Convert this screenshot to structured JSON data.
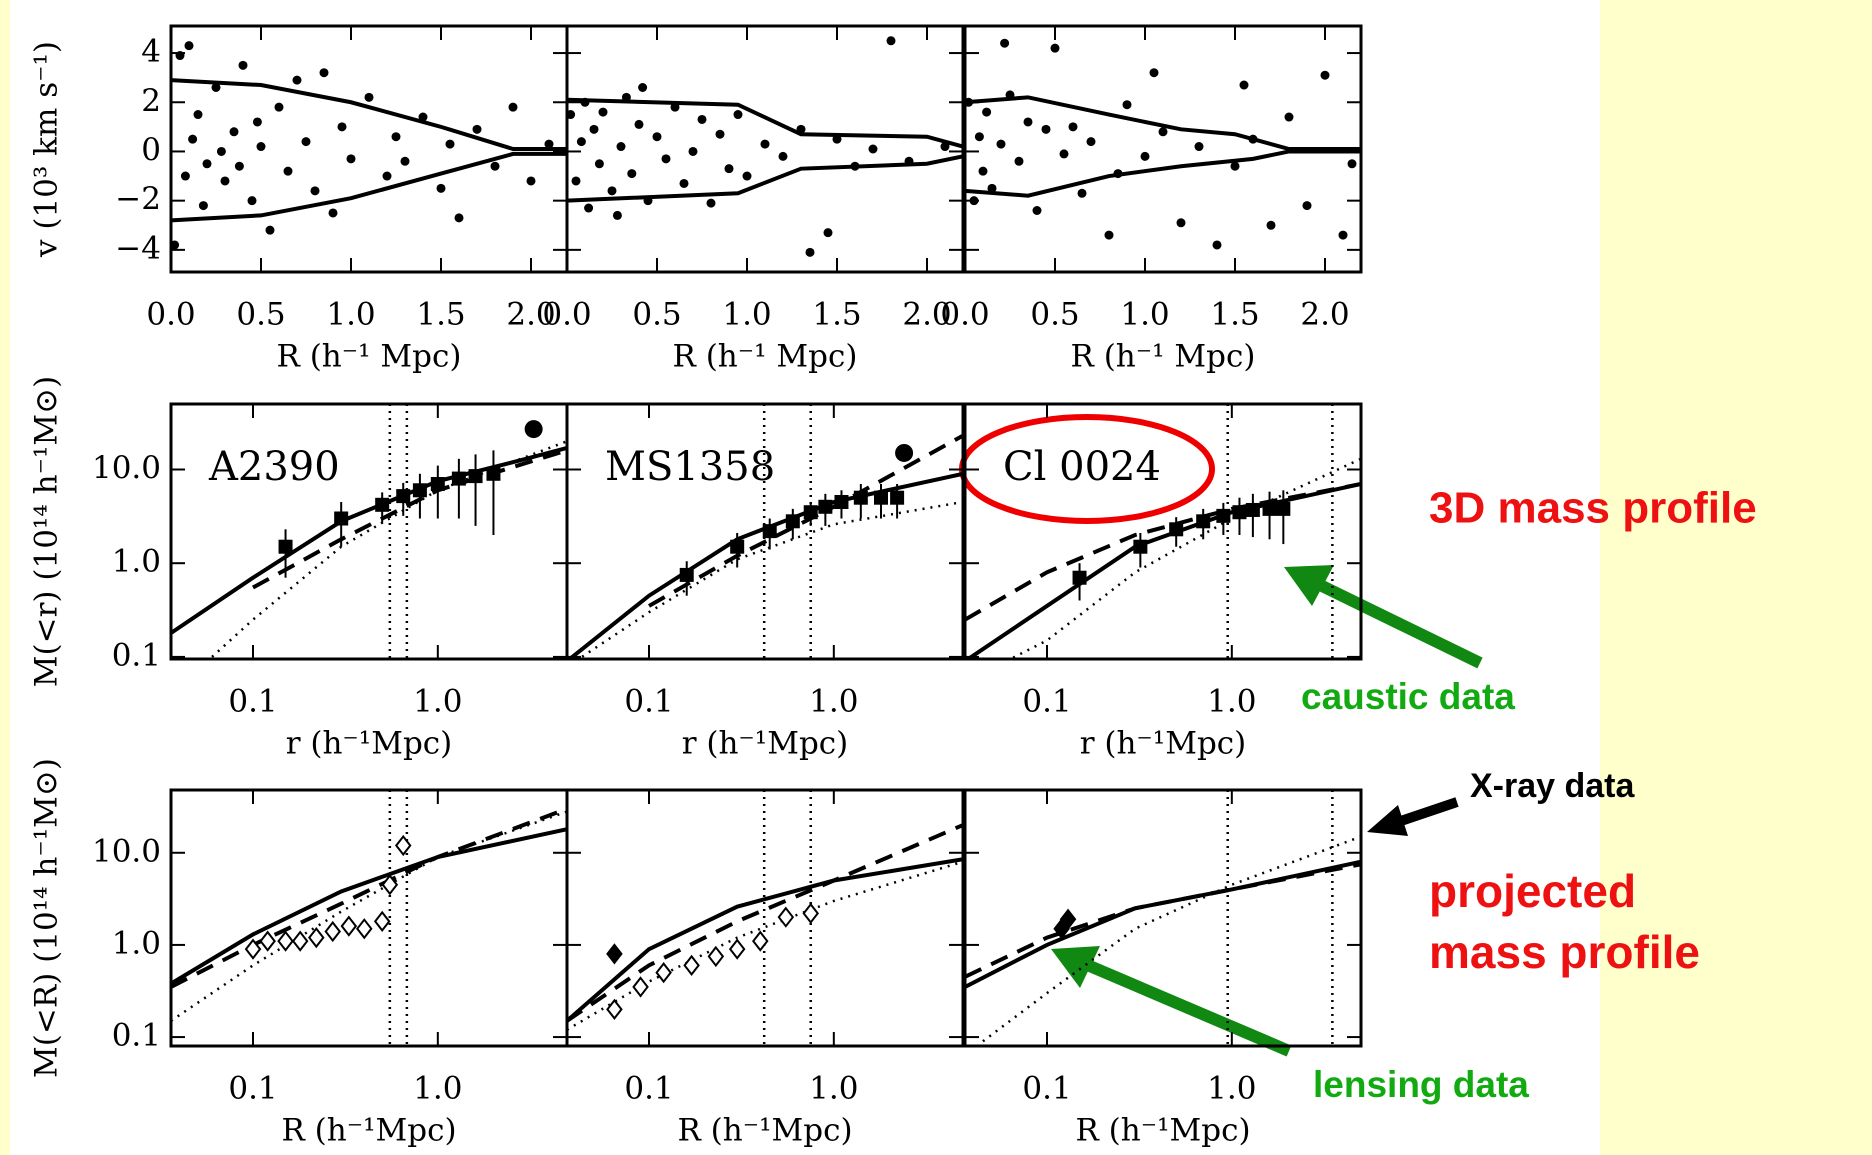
{
  "chart_data": [
    {
      "type": "scatter",
      "xlim": [
        0,
        2.2
      ],
      "xticks": [
        {
          "value": 0,
          "label": "0.0"
        },
        0.5,
        {
          "value": 1,
          "label": "1.0"
        },
        1.5,
        {
          "value": 2,
          "label": "2.0"
        }
      ],
      "ylim": [
        -4.9,
        5.1
      ],
      "yticks": [
        4,
        2,
        0,
        {
          "value": -2,
          "label": "−2"
        },
        {
          "value": -4,
          "label": "−4"
        }
      ],
      "x_label": "R (h⁻¹ Mpc)",
      "y_label": "v (10³ km s⁻¹)",
      "x": [
        0.05,
        0.1,
        0.15,
        0.2,
        0.25,
        0.3,
        0.35,
        0.4,
        0.45,
        0.5,
        0.55,
        0.6,
        0.65,
        0.7,
        0.75,
        0.8,
        0.85,
        0.9,
        0.95,
        1.0,
        1.1,
        1.2,
        1.25,
        1.3,
        1.4,
        1.5,
        1.55,
        1.6,
        1.7,
        1.8,
        1.9,
        2.0,
        2.1,
        0.02,
        0.08,
        0.12,
        0.18,
        0.28,
        0.38,
        0.48
      ],
      "values": [
        3.9,
        4.3,
        1.5,
        -0.5,
        2.6,
        -1.2,
        0.8,
        3.5,
        -2.0,
        0.2,
        -3.2,
        1.8,
        -0.8,
        2.9,
        0.4,
        -1.6,
        3.2,
        -2.5,
        1.0,
        -0.3,
        2.2,
        -1.0,
        0.6,
        -0.4,
        1.4,
        -1.5,
        0.3,
        -2.7,
        0.9,
        -0.6,
        1.8,
        -1.2,
        0.3,
        -3.8,
        -1.0,
        0.5,
        -2.2,
        0.0,
        -0.6,
        1.2
      ],
      "curves": [
        {
          "style": "solid",
          "x": [
            0,
            0.5,
            1,
            1.5,
            1.9,
            2.2
          ],
          "values": [
            2.9,
            2.7,
            2.0,
            1.0,
            0.1,
            0.1
          ]
        },
        {
          "style": "solid",
          "x": [
            0,
            0.5,
            1,
            1.5,
            1.9,
            2.2
          ],
          "values": [
            -2.8,
            -2.6,
            -1.9,
            -0.9,
            -0.1,
            -0.1
          ]
        }
      ]
    },
    {
      "type": "scatter",
      "xlim": [
        0,
        2.2
      ],
      "xticks": [
        {
          "value": 0,
          "label": "0.0"
        },
        0.5,
        {
          "value": 1,
          "label": "1.0"
        },
        1.5,
        {
          "value": 2,
          "label": "2.0"
        }
      ],
      "ylim": [
        -4.9,
        5.1
      ],
      "yticks": [
        4,
        2,
        0,
        -2,
        -4
      ],
      "ytick_labels": false,
      "x_label": "R (h⁻¹ Mpc)",
      "x": [
        0.02,
        0.05,
        0.08,
        0.1,
        0.12,
        0.15,
        0.18,
        0.2,
        0.25,
        0.3,
        0.33,
        0.36,
        0.4,
        0.45,
        0.5,
        0.55,
        0.6,
        0.65,
        0.7,
        0.75,
        0.8,
        0.85,
        0.9,
        0.95,
        1.0,
        1.1,
        1.2,
        1.3,
        1.35,
        1.45,
        1.5,
        1.6,
        1.7,
        1.8,
        1.9,
        2.1,
        0.28,
        0.42
      ],
      "values": [
        1.5,
        -1.2,
        0.4,
        2.0,
        -2.3,
        0.9,
        -0.5,
        1.6,
        -1.6,
        0.2,
        2.2,
        -0.9,
        1.1,
        -2.0,
        0.6,
        -0.3,
        1.8,
        -1.3,
        0.0,
        1.3,
        -2.1,
        0.7,
        -0.7,
        1.5,
        -1.0,
        0.3,
        -0.2,
        0.9,
        -4.1,
        -3.3,
        0.5,
        -0.6,
        0.1,
        4.5,
        -0.4,
        0.2,
        -2.6,
        2.6
      ],
      "curves": [
        {
          "style": "solid",
          "x": [
            0,
            0.95,
            1.3,
            2.0,
            2.2
          ],
          "values": [
            2.1,
            1.9,
            0.7,
            0.6,
            0.2
          ]
        },
        {
          "style": "solid",
          "x": [
            0,
            0.95,
            1.3,
            2.0,
            2.2
          ],
          "values": [
            -2.0,
            -1.7,
            -0.7,
            -0.5,
            -0.2
          ]
        }
      ]
    },
    {
      "type": "scatter",
      "xlim": [
        0,
        2.2
      ],
      "xticks": [
        {
          "value": 0,
          "label": "0.0"
        },
        0.5,
        {
          "value": 1,
          "label": "1.0"
        },
        1.5,
        {
          "value": 2,
          "label": "2.0"
        }
      ],
      "ylim": [
        -4.9,
        5.1
      ],
      "yticks": [
        4,
        2,
        0,
        -2,
        -4
      ],
      "ytick_labels": false,
      "x_label": "R (h⁻¹ Mpc)",
      "x": [
        0.02,
        0.05,
        0.08,
        0.1,
        0.12,
        0.15,
        0.2,
        0.25,
        0.3,
        0.35,
        0.4,
        0.45,
        0.5,
        0.55,
        0.6,
        0.65,
        0.7,
        0.8,
        0.85,
        0.9,
        1.0,
        1.05,
        1.1,
        1.2,
        1.3,
        1.4,
        1.5,
        1.55,
        1.6,
        1.7,
        1.8,
        1.9,
        2.0,
        2.1,
        2.15,
        0.22
      ],
      "values": [
        2.0,
        -2.0,
        0.6,
        -0.8,
        1.6,
        -1.5,
        0.3,
        2.3,
        -0.4,
        1.2,
        -2.4,
        0.9,
        4.2,
        -0.1,
        1.0,
        -1.7,
        0.4,
        -3.4,
        -0.9,
        1.9,
        -0.2,
        3.2,
        0.8,
        -2.9,
        0.2,
        -3.8,
        -0.6,
        2.7,
        0.5,
        -3.0,
        1.4,
        -2.2,
        3.1,
        -3.4,
        -0.5,
        4.4
      ],
      "curves": [
        {
          "style": "solid",
          "x": [
            0,
            0.35,
            0.8,
            1.2,
            1.5,
            1.8,
            2.2
          ],
          "values": [
            2.0,
            2.2,
            1.5,
            0.9,
            0.7,
            0.1,
            0.1
          ]
        },
        {
          "style": "solid",
          "x": [
            0,
            0.35,
            0.8,
            1.2,
            1.6,
            1.8,
            2.2
          ],
          "values": [
            -1.6,
            -1.8,
            -1.0,
            -0.6,
            -0.3,
            0.0,
            0.0
          ]
        }
      ]
    },
    {
      "type": "line",
      "log_x": true,
      "log_y": true,
      "label": "A2390",
      "xlim": [
        0.036,
        5
      ],
      "xticks": [
        0.1,
        {
          "value": 1,
          "label": "1.0"
        }
      ],
      "ylim": [
        0.095,
        50
      ],
      "yticks": [
        {
          "value": 10,
          "label": "10.0"
        },
        {
          "value": 1,
          "label": "1.0"
        },
        0.1
      ],
      "x_label": "r (h⁻¹Mpc)",
      "y_label": "M(<r) (10¹⁴ h⁻¹M⊙)",
      "vlines": [
        0.55,
        0.68
      ],
      "curves": [
        {
          "style": "solid",
          "x": [
            0.036,
            0.1,
            0.3,
            1,
            3,
            5
          ],
          "values": [
            0.18,
            0.7,
            2.8,
            7.5,
            13,
            17
          ]
        },
        {
          "style": "dashed",
          "x": [
            0.1,
            0.3,
            1,
            5
          ],
          "values": [
            0.55,
            1.8,
            6,
            16
          ]
        },
        {
          "style": "dotted",
          "x": [
            0.06,
            0.1,
            0.3,
            1,
            5
          ],
          "values": [
            0.1,
            0.25,
            1.5,
            6,
            20
          ]
        }
      ],
      "points": [
        {
          "marker": "square",
          "x": [
            0.15,
            0.3,
            0.5,
            0.65,
            0.8,
            1.0,
            1.3,
            1.6,
            2.0
          ],
          "values": [
            1.5,
            3,
            4.2,
            5.2,
            6,
            7,
            8,
            8.5,
            9
          ],
          "errors": [
            0.8,
            1.5,
            1.5,
            2,
            3,
            4,
            5,
            6,
            7
          ]
        },
        {
          "marker": "circle",
          "x": [
            3.3
          ],
          "values": [
            27
          ]
        }
      ]
    },
    {
      "type": "line",
      "log_x": true,
      "log_y": true,
      "label": "MS1358",
      "xlim": [
        0.036,
        5
      ],
      "xticks": [
        0.1,
        {
          "value": 1,
          "label": "1.0"
        }
      ],
      "ylim": [
        0.095,
        50
      ],
      "yticks": [
        10,
        1,
        0.1
      ],
      "ytick_labels": false,
      "x_label": "r (h⁻¹Mpc)",
      "vlines": [
        0.42,
        0.75
      ],
      "curves": [
        {
          "style": "solid",
          "x": [
            0.036,
            0.1,
            0.3,
            1,
            5
          ],
          "values": [
            0.09,
            0.45,
            1.8,
            4.5,
            9
          ]
        },
        {
          "style": "dashed",
          "x": [
            0.1,
            0.3,
            1,
            5
          ],
          "values": [
            0.35,
            1.2,
            4,
            23
          ]
        },
        {
          "style": "dotted",
          "x": [
            0.04,
            0.1,
            0.3,
            1,
            5
          ],
          "values": [
            0.09,
            0.3,
            1.1,
            2.6,
            4.5
          ]
        }
      ],
      "points": [
        {
          "marker": "square",
          "x": [
            0.16,
            0.3,
            0.45,
            0.6,
            0.75,
            0.9,
            1.1,
            1.4,
            1.8,
            2.2
          ],
          "values": [
            0.75,
            1.5,
            2.2,
            2.8,
            3.5,
            4,
            4.5,
            5,
            5,
            5
          ],
          "errors": [
            0.3,
            0.6,
            0.8,
            1,
            1,
            1.5,
            1.5,
            2,
            2,
            2
          ]
        },
        {
          "marker": "circle",
          "x": [
            2.4
          ],
          "values": [
            15
          ]
        }
      ]
    },
    {
      "type": "line",
      "log_x": true,
      "log_y": true,
      "label": "Cl 0024",
      "xlim": [
        0.036,
        5
      ],
      "xticks": [
        0.1,
        {
          "value": 1,
          "label": "1.0"
        }
      ],
      "ylim": [
        0.095,
        50
      ],
      "yticks": [
        10,
        1,
        0.1
      ],
      "ytick_labels": false,
      "x_label": "r (h⁻¹Mpc)",
      "vlines": [
        0.95,
        3.5
      ],
      "curves": [
        {
          "style": "solid",
          "x": [
            0.036,
            0.1,
            0.3,
            1,
            5
          ],
          "values": [
            0.09,
            0.35,
            1.5,
            3.5,
            7
          ]
        },
        {
          "style": "dashed",
          "x": [
            0.036,
            0.1,
            0.3,
            1,
            5
          ],
          "values": [
            0.25,
            0.8,
            2,
            3.8,
            7
          ]
        },
        {
          "style": "dotted",
          "x": [
            0.06,
            0.1,
            0.3,
            1,
            5
          ],
          "values": [
            0.09,
            0.15,
            0.8,
            3,
            13
          ]
        }
      ],
      "points": [
        {
          "marker": "square",
          "x": [
            0.15,
            0.32,
            0.5,
            0.7,
            0.9,
            1.1,
            1.3,
            1.6,
            1.9
          ],
          "values": [
            0.7,
            1.5,
            2.3,
            2.8,
            3.2,
            3.5,
            3.7,
            3.8,
            3.8
          ],
          "errors": [
            0.3,
            0.6,
            0.8,
            1,
            1.2,
            1.5,
            1.8,
            2,
            2.2
          ]
        }
      ]
    },
    {
      "type": "line",
      "log_x": true,
      "log_y": true,
      "xlim": [
        0.036,
        5
      ],
      "xticks": [
        0.1,
        {
          "value": 1,
          "label": "1.0"
        }
      ],
      "ylim": [
        0.08,
        48
      ],
      "yticks": [
        {
          "value": 10,
          "label": "10.0"
        },
        {
          "value": 1,
          "label": "1.0"
        },
        0.1
      ],
      "x_label": "R (h⁻¹Mpc)",
      "y_label": "M(<R) (10¹⁴ h⁻¹M⊙)",
      "vlines": [
        0.55,
        0.68
      ],
      "curves": [
        {
          "style": "solid",
          "x": [
            0.036,
            0.1,
            0.3,
            1,
            5
          ],
          "values": [
            0.38,
            1.3,
            3.8,
            9,
            18
          ]
        },
        {
          "style": "dashed",
          "x": [
            0.036,
            0.1,
            0.3,
            1,
            5
          ],
          "values": [
            0.35,
            1,
            2.8,
            9,
            30
          ]
        },
        {
          "style": "dotted",
          "x": [
            0.036,
            0.1,
            0.3,
            1,
            5
          ],
          "values": [
            0.15,
            0.6,
            2.3,
            9,
            28
          ]
        }
      ],
      "points": [
        {
          "marker": "diamond",
          "x": [
            0.1,
            0.12,
            0.15,
            0.18,
            0.22,
            0.27,
            0.33,
            0.4,
            0.5,
            0.55,
            0.65
          ],
          "values": [
            0.9,
            1.1,
            1.1,
            1.1,
            1.2,
            1.4,
            1.6,
            1.5,
            1.8,
            4.5,
            12
          ]
        }
      ]
    },
    {
      "type": "line",
      "log_x": true,
      "log_y": true,
      "xlim": [
        0.036,
        5
      ],
      "xticks": [
        0.1,
        {
          "value": 1,
          "label": "1.0"
        }
      ],
      "ylim": [
        0.08,
        48
      ],
      "yticks": [
        10,
        1,
        0.1
      ],
      "ytick_labels": false,
      "x_label": "R (h⁻¹Mpc)",
      "vlines": [
        0.42,
        0.75
      ],
      "curves": [
        {
          "style": "solid",
          "x": [
            0.036,
            0.1,
            0.3,
            1,
            5
          ],
          "values": [
            0.15,
            0.9,
            2.6,
            5,
            8.5
          ]
        },
        {
          "style": "dashed",
          "x": [
            0.036,
            0.1,
            0.3,
            1,
            5
          ],
          "values": [
            0.15,
            0.6,
            1.8,
            5,
            20
          ]
        },
        {
          "style": "dotted",
          "x": [
            0.036,
            0.1,
            0.3,
            1,
            5
          ],
          "values": [
            0.12,
            0.4,
            1.2,
            3,
            8
          ]
        }
      ],
      "points": [
        {
          "marker": "diamond",
          "x": [
            0.065,
            0.09,
            0.12,
            0.17,
            0.23,
            0.3,
            0.4,
            0.55,
            0.75
          ],
          "values": [
            0.2,
            0.35,
            0.5,
            0.6,
            0.75,
            0.9,
            1.1,
            2,
            2.2
          ]
        },
        {
          "marker": "filled-diamond",
          "x": [
            0.065
          ],
          "values": [
            0.8
          ]
        }
      ]
    },
    {
      "type": "line",
      "log_x": true,
      "log_y": true,
      "xlim": [
        0.036,
        5
      ],
      "xticks": [
        0.1,
        {
          "value": 1,
          "label": "1.0"
        }
      ],
      "ylim": [
        0.08,
        48
      ],
      "yticks": [
        10,
        1,
        0.1
      ],
      "ytick_labels": false,
      "x_label": "R (h⁻¹Mpc)",
      "vlines": [
        0.95,
        3.5
      ],
      "curves": [
        {
          "style": "solid",
          "x": [
            0.036,
            0.1,
            0.3,
            1,
            5
          ],
          "values": [
            0.35,
            1.0,
            2.5,
            4,
            8
          ]
        },
        {
          "style": "dashed",
          "x": [
            0.036,
            0.1,
            0.3,
            1,
            5
          ],
          "values": [
            0.45,
            1.2,
            2.5,
            4,
            7.5
          ]
        },
        {
          "style": "dotted",
          "x": [
            0.045,
            0.1,
            0.3,
            1,
            5
          ],
          "values": [
            0.09,
            0.3,
            1.5,
            4.5,
            15
          ]
        }
      ],
      "points": [
        {
          "marker": "filled-diamond",
          "x": [
            0.12,
            0.13
          ],
          "values": [
            1.5,
            1.9
          ]
        }
      ]
    }
  ],
  "annotations": {
    "mass_3d": "3D mass profile",
    "caustic": "caustic data",
    "xray": "X-ray  data",
    "projected": [
      "projected",
      "mass profile"
    ],
    "lensing": "lensing data"
  }
}
